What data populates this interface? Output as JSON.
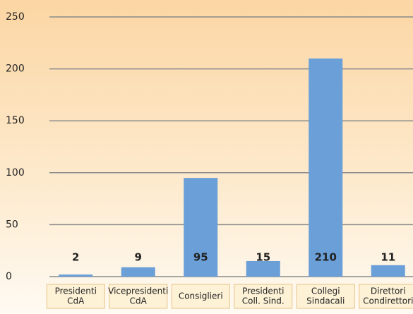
{
  "chart_data": {
    "type": "bar",
    "categories": [
      [
        "Presidenti",
        "CdA"
      ],
      [
        "Vicepresidenti",
        "CdA"
      ],
      [
        "Consiglieri"
      ],
      [
        "Presidenti",
        "Coll. Sind."
      ],
      [
        "Collegi",
        "Sindacali"
      ],
      [
        "Direttori",
        "Condirettori"
      ]
    ],
    "values": [
      2,
      9,
      95,
      15,
      210,
      11
    ],
    "color": "#6a9fd8",
    "ylim": [
      0,
      250
    ],
    "yticks": [
      0,
      50,
      100,
      150,
      200,
      250
    ],
    "grid": true
  }
}
